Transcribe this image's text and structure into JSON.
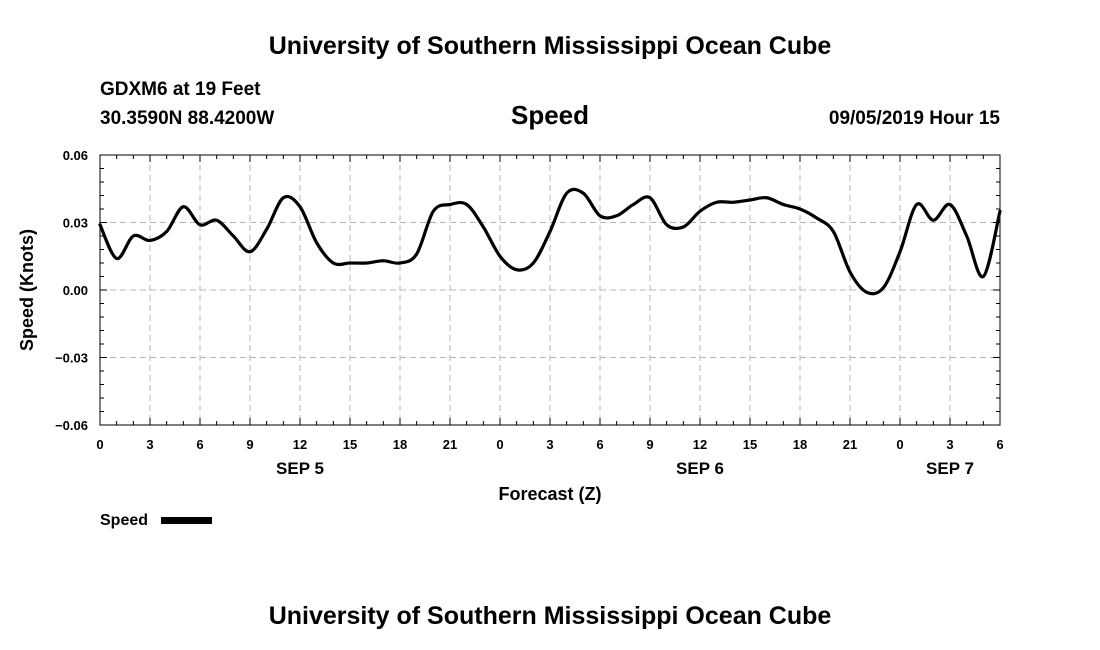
{
  "header": {
    "title": "University of Southern Mississippi Ocean Cube",
    "station": "GDXM6 at 19 Feet",
    "location": "30.3590N 88.4200W",
    "variable": "Speed",
    "datetime": "09/05/2019 Hour 15"
  },
  "footer": {
    "title": "University of Southern Mississippi Ocean Cube"
  },
  "colors": {
    "line": "#000000",
    "grid": "#b4b4b4",
    "frame": "#000000"
  },
  "chart_data": {
    "type": "line",
    "title": "Speed",
    "xlabel": "Forecast (Z)",
    "ylabel": "Speed (Knots)",
    "xlim": [
      0,
      54
    ],
    "ylim": [
      -0.06,
      0.06
    ],
    "yticks": [
      0.06,
      0.03,
      0.0,
      -0.03,
      -0.06
    ],
    "ytick_labels": [
      "0.06",
      "0.03",
      "0.00",
      "−0.03",
      "−0.06"
    ],
    "xticks": [
      0,
      3,
      6,
      9,
      12,
      15,
      18,
      21,
      24,
      27,
      30,
      33,
      36,
      39,
      42,
      45,
      48,
      51,
      54
    ],
    "xtick_labels": [
      "0",
      "3",
      "6",
      "9",
      "12",
      "15",
      "18",
      "21",
      "0",
      "3",
      "6",
      "9",
      "12",
      "15",
      "18",
      "21",
      "0",
      "3",
      "6"
    ],
    "date_labels": [
      {
        "label": "SEP 5",
        "x": 12
      },
      {
        "label": "SEP 6",
        "x": 36
      },
      {
        "label": "SEP 7",
        "x": 51
      }
    ],
    "grid": true,
    "legend": {
      "position": "bottom-left",
      "entries": [
        "Speed"
      ]
    },
    "series": [
      {
        "name": "Speed",
        "x": [
          0,
          1,
          2,
          3,
          4,
          5,
          6,
          7,
          8,
          9,
          10,
          11,
          12,
          13,
          14,
          15,
          16,
          17,
          18,
          19,
          20,
          21,
          22,
          23,
          24,
          25,
          26,
          27,
          28,
          29,
          30,
          31,
          32,
          33,
          34,
          35,
          36,
          37,
          38,
          39,
          40,
          41,
          42,
          43,
          44,
          45,
          46,
          47,
          48,
          49,
          50,
          51,
          52,
          53,
          54
        ],
        "values": [
          0.029,
          0.014,
          0.024,
          0.022,
          0.026,
          0.037,
          0.029,
          0.031,
          0.024,
          0.017,
          0.027,
          0.041,
          0.037,
          0.021,
          0.012,
          0.012,
          0.012,
          0.013,
          0.012,
          0.016,
          0.035,
          0.038,
          0.038,
          0.028,
          0.015,
          0.009,
          0.012,
          0.026,
          0.043,
          0.043,
          0.033,
          0.033,
          0.038,
          0.041,
          0.029,
          0.028,
          0.035,
          0.039,
          0.039,
          0.04,
          0.041,
          0.038,
          0.036,
          0.032,
          0.026,
          0.008,
          -0.001,
          0.001,
          0.017,
          0.038,
          0.031,
          0.038,
          0.024,
          0.006,
          0.035
        ]
      }
    ]
  },
  "labels": {
    "legend_label": "Speed"
  }
}
